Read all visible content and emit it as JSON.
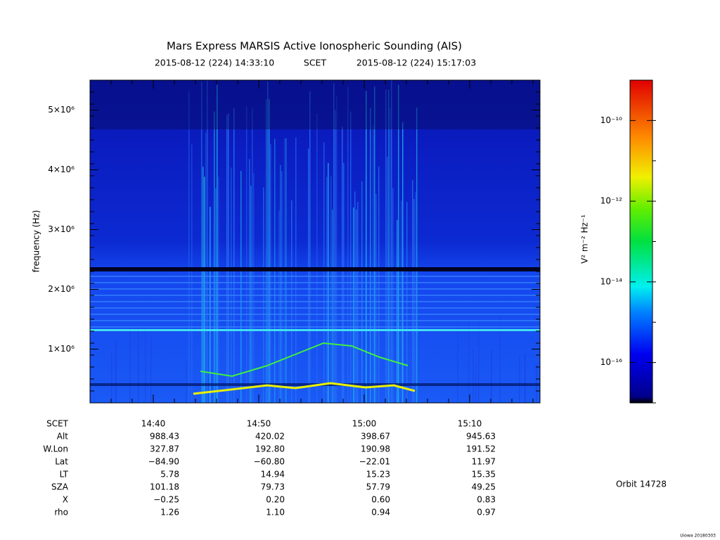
{
  "chart_data": {
    "type": "spectrogram",
    "title": "Mars Express MARSIS Active Ionospheric Sounding (AIS)",
    "start_time": "2015-08-12 (224) 14:33:10",
    "time_label": "SCET",
    "end_time": "2015-08-12 (224) 15:17:03",
    "y_label": "frequency (Hz)",
    "ylim": [
      100000,
      5500000
    ],
    "yticks": [
      {
        "value": 1000000,
        "label": "1×10⁶"
      },
      {
        "value": 2000000,
        "label": "2×10⁶"
      },
      {
        "value": 3000000,
        "label": "3×10⁶"
      },
      {
        "value": 4000000,
        "label": "4×10⁶"
      },
      {
        "value": 5000000,
        "label": "5×10⁶"
      }
    ],
    "colorbar": {
      "label": "V² m⁻² Hz⁻¹",
      "log": true,
      "zlim": [
        1e-17,
        1e-09
      ],
      "ticks": [
        {
          "value": 1e-16,
          "label": "10⁻¹⁶"
        },
        {
          "value": 1e-14,
          "label": "10⁻¹⁴"
        },
        {
          "value": 1e-12,
          "label": "10⁻¹²"
        },
        {
          "value": 1e-10,
          "label": "10⁻¹⁰"
        }
      ]
    },
    "ephemeris": {
      "columns_label": "SCET",
      "columns": [
        "14:40",
        "14:50",
        "15:00",
        "15:10"
      ],
      "rows": [
        {
          "name": "Alt",
          "values": [
            "988.43",
            "420.02",
            "398.67",
            "945.63"
          ]
        },
        {
          "name": "W.Lon",
          "values": [
            "327.87",
            "192.80",
            "190.98",
            "191.52"
          ]
        },
        {
          "name": "Lat",
          "values": [
            "−84.90",
            "−60.80",
            "−22.01",
            "11.97"
          ]
        },
        {
          "name": "LT",
          "values": [
            "5.78",
            "14.94",
            "15.23",
            "15.35"
          ]
        },
        {
          "name": "SZA",
          "values": [
            "101.18",
            "79.73",
            "57.79",
            "49.25"
          ]
        },
        {
          "name": "X",
          "values": [
            "−0.25",
            "0.20",
            "0.60",
            "0.83"
          ]
        },
        {
          "name": "rho",
          "values": [
            "1.26",
            "1.10",
            "0.94",
            "0.97"
          ]
        }
      ]
    },
    "orbit": "Orbit 14728",
    "footer": "Uiowa 20180303"
  }
}
